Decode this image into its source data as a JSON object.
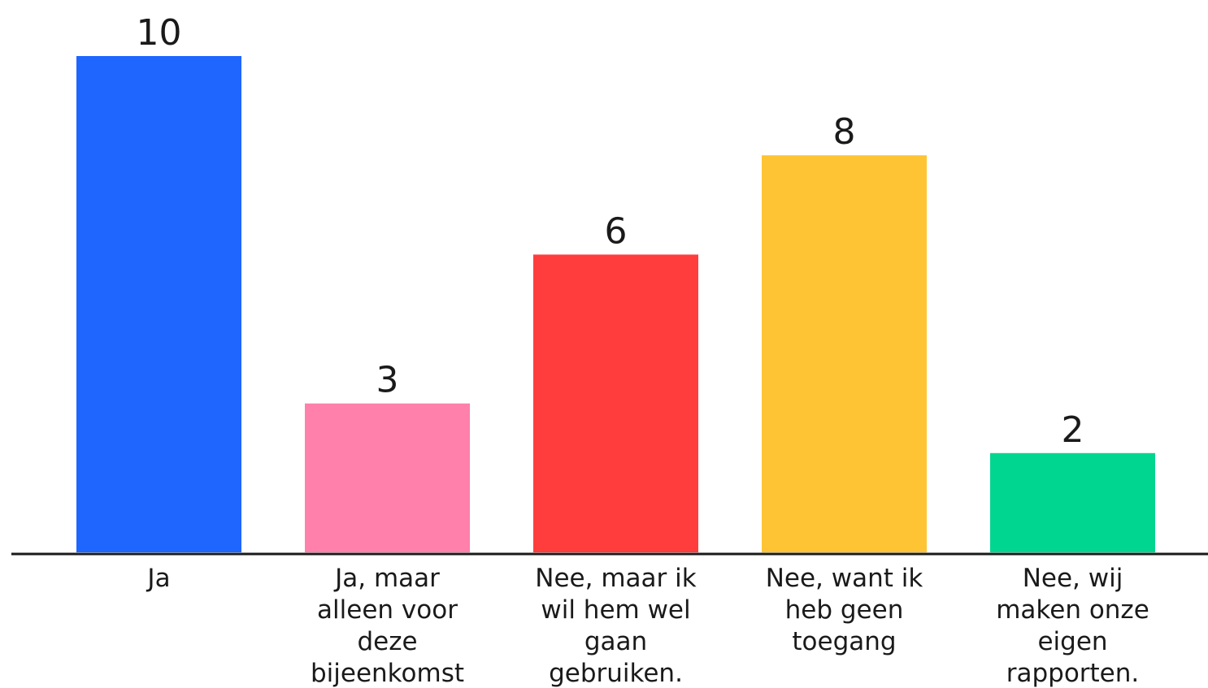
{
  "chart_data": {
    "type": "bar",
    "title": "",
    "xlabel": "",
    "ylabel": "",
    "ylim": [
      0,
      10
    ],
    "grid": false,
    "legend": "none",
    "categories": [
      [
        "Ja"
      ],
      [
        "Ja, maar",
        "alleen voor",
        "deze",
        "bijeenkomst"
      ],
      [
        "Nee, maar ik",
        "wil hem wel",
        "gaan",
        "gebruiken."
      ],
      [
        "Nee, want ik",
        "heb geen",
        "toegang"
      ],
      [
        "Nee, wij",
        "maken onze",
        "eigen",
        "rapporten."
      ]
    ],
    "values": [
      10,
      3,
      6,
      8,
      2
    ],
    "colors": [
      "#1f66ff",
      "#ff80aa",
      "#ff3d3d",
      "#ffc433",
      "#00d68f"
    ],
    "axis_color": "#1a1a1a"
  }
}
